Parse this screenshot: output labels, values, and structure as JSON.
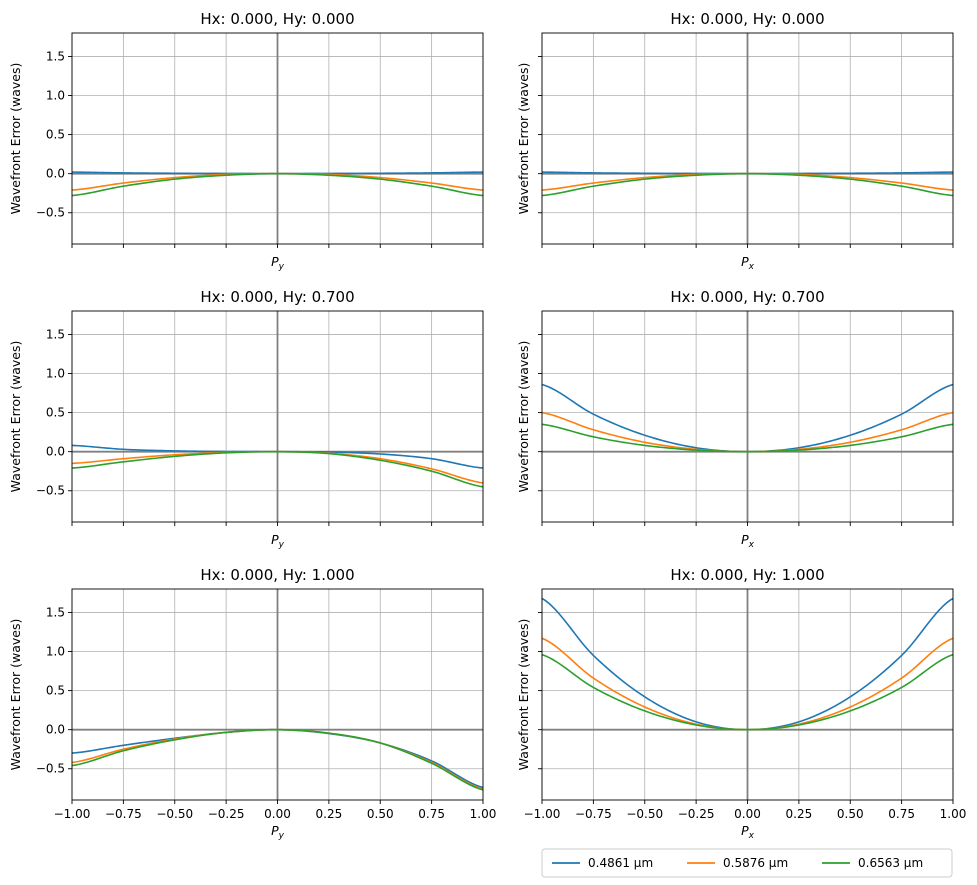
{
  "figure": {
    "legend": {
      "placement": "bottom-right",
      "entries": [
        {
          "label": "0.4861 µm",
          "color": "#1f77b4"
        },
        {
          "label": "0.5876 µm",
          "color": "#ff7f0e"
        },
        {
          "label": "0.6563 µm",
          "color": "#2ca02c"
        }
      ]
    },
    "colors": {
      "zero_line": "#808080",
      "grid": "#b0b0b0"
    }
  },
  "chart_data": [
    {
      "type": "line",
      "title": "Hx: 0.000, Hy: 0.000",
      "xlabel_main": "P",
      "xlabel_sub": "y",
      "ylabel": "Wavefront Error (waves)",
      "xlim": [
        -1,
        1
      ],
      "ylim": [
        -0.9,
        1.8
      ],
      "grid": true,
      "x": [
        -1,
        -0.75,
        -0.5,
        -0.25,
        0,
        0.25,
        0.5,
        0.75,
        1
      ],
      "series": [
        {
          "name": "0.4861 µm",
          "values": [
            0.02,
            0.01,
            0.005,
            0.002,
            0,
            0.002,
            0.005,
            0.01,
            0.02
          ]
        },
        {
          "name": "0.5876 µm",
          "values": [
            -0.21,
            -0.12,
            -0.05,
            -0.01,
            0,
            -0.01,
            -0.05,
            -0.12,
            -0.21
          ]
        },
        {
          "name": "0.6563 µm",
          "values": [
            -0.28,
            -0.16,
            -0.07,
            -0.02,
            0,
            -0.02,
            -0.07,
            -0.16,
            -0.28
          ]
        }
      ]
    },
    {
      "type": "line",
      "title": "Hx: 0.000, Hy: 0.000",
      "xlabel_main": "P",
      "xlabel_sub": "x",
      "ylabel": "Wavefront Error (waves)",
      "xlim": [
        -1,
        1
      ],
      "ylim": [
        -0.9,
        1.8
      ],
      "grid": true,
      "x": [
        -1,
        -0.75,
        -0.5,
        -0.25,
        0,
        0.25,
        0.5,
        0.75,
        1
      ],
      "series": [
        {
          "name": "0.4861 µm",
          "values": [
            0.02,
            0.01,
            0.005,
            0.002,
            0,
            0.002,
            0.005,
            0.01,
            0.02
          ]
        },
        {
          "name": "0.5876 µm",
          "values": [
            -0.21,
            -0.12,
            -0.05,
            -0.01,
            0,
            -0.01,
            -0.05,
            -0.12,
            -0.21
          ]
        },
        {
          "name": "0.6563 µm",
          "values": [
            -0.28,
            -0.16,
            -0.07,
            -0.02,
            0,
            -0.02,
            -0.07,
            -0.16,
            -0.28
          ]
        }
      ]
    },
    {
      "type": "line",
      "title": "Hx: 0.000, Hy: 0.700",
      "xlabel_main": "P",
      "xlabel_sub": "y",
      "ylabel": "Wavefront Error (waves)",
      "xlim": [
        -1,
        1
      ],
      "ylim": [
        -0.9,
        1.8
      ],
      "grid": true,
      "x": [
        -1,
        -0.75,
        -0.5,
        -0.25,
        0,
        0.25,
        0.5,
        0.75,
        1
      ],
      "series": [
        {
          "name": "0.4861 µm",
          "values": [
            0.08,
            0.03,
            0.01,
            0.002,
            0,
            -0.005,
            -0.03,
            -0.09,
            -0.21
          ]
        },
        {
          "name": "0.5876 µm",
          "values": [
            -0.15,
            -0.09,
            -0.04,
            -0.01,
            0,
            -0.02,
            -0.09,
            -0.22,
            -0.4
          ]
        },
        {
          "name": "0.6563 µm",
          "values": [
            -0.21,
            -0.13,
            -0.06,
            -0.015,
            0,
            -0.025,
            -0.11,
            -0.25,
            -0.45
          ]
        }
      ]
    },
    {
      "type": "line",
      "title": "Hx: 0.000, Hy: 0.700",
      "xlabel_main": "P",
      "xlabel_sub": "x",
      "ylabel": "Wavefront Error (waves)",
      "xlim": [
        -1,
        1
      ],
      "ylim": [
        -0.9,
        1.8
      ],
      "grid": true,
      "x": [
        -1,
        -0.75,
        -0.5,
        -0.25,
        0,
        0.25,
        0.5,
        0.75,
        1
      ],
      "series": [
        {
          "name": "0.4861 µm",
          "values": [
            0.86,
            0.48,
            0.21,
            0.05,
            0,
            0.05,
            0.21,
            0.48,
            0.86
          ]
        },
        {
          "name": "0.5876 µm",
          "values": [
            0.5,
            0.28,
            0.12,
            0.03,
            0,
            0.03,
            0.12,
            0.28,
            0.5
          ]
        },
        {
          "name": "0.6563 µm",
          "values": [
            0.35,
            0.19,
            0.08,
            0.02,
            0,
            0.02,
            0.08,
            0.19,
            0.35
          ]
        }
      ]
    },
    {
      "type": "line",
      "title": "Hx: 0.000, Hy: 1.000",
      "xlabel_main": "P",
      "xlabel_sub": "y",
      "ylabel": "Wavefront Error (waves)",
      "xlim": [
        -1,
        1
      ],
      "ylim": [
        -0.9,
        1.8
      ],
      "grid": true,
      "x": [
        -1,
        -0.75,
        -0.5,
        -0.25,
        0,
        0.25,
        0.5,
        0.75,
        1
      ],
      "series": [
        {
          "name": "0.4861 µm",
          "values": [
            -0.3,
            -0.2,
            -0.11,
            -0.035,
            0,
            -0.05,
            -0.17,
            -0.4,
            -0.74
          ]
        },
        {
          "name": "0.5876 µm",
          "values": [
            -0.42,
            -0.25,
            -0.12,
            -0.035,
            0,
            -0.045,
            -0.17,
            -0.42,
            -0.76
          ]
        },
        {
          "name": "0.6563 µm",
          "values": [
            -0.46,
            -0.27,
            -0.13,
            -0.035,
            0,
            -0.045,
            -0.17,
            -0.43,
            -0.77
          ]
        }
      ]
    },
    {
      "type": "line",
      "title": "Hx: 0.000, Hy: 1.000",
      "xlabel_main": "P",
      "xlabel_sub": "x",
      "ylabel": "Wavefront Error (waves)",
      "xlim": [
        -1,
        1
      ],
      "ylim": [
        -0.9,
        1.8
      ],
      "grid": true,
      "x": [
        -1,
        -0.75,
        -0.5,
        -0.25,
        0,
        0.25,
        0.5,
        0.75,
        1
      ],
      "series": [
        {
          "name": "0.4861 µm",
          "values": [
            1.68,
            0.95,
            0.42,
            0.1,
            0,
            0.1,
            0.42,
            0.95,
            1.68
          ]
        },
        {
          "name": "0.5876 µm",
          "values": [
            1.17,
            0.66,
            0.29,
            0.07,
            0,
            0.07,
            0.29,
            0.66,
            1.17
          ]
        },
        {
          "name": "0.6563 µm",
          "values": [
            0.96,
            0.54,
            0.24,
            0.06,
            0,
            0.06,
            0.24,
            0.54,
            0.96
          ]
        }
      ]
    }
  ]
}
